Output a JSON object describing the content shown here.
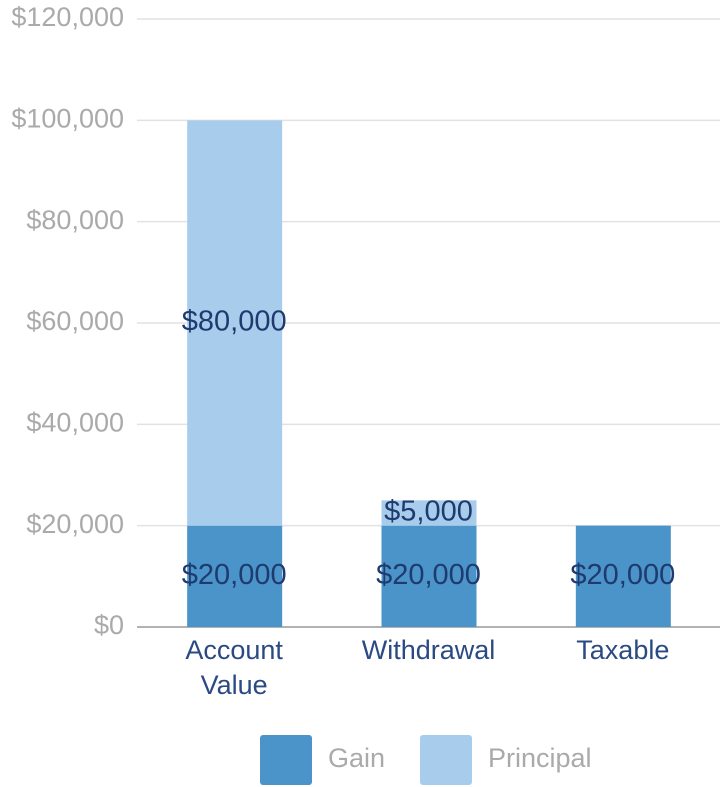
{
  "chart_data": {
    "type": "stacked_bar",
    "categories": [
      "Account Value",
      "Withdrawal",
      "Taxable"
    ],
    "series": [
      {
        "name": "Gain",
        "color": "#4a94c9",
        "values": [
          20000,
          20000,
          20000
        ],
        "value_labels": [
          "$20,000",
          "$20,000",
          "$20,000"
        ]
      },
      {
        "name": "Principal",
        "color": "#a8cdec",
        "values": [
          80000,
          5000,
          null
        ],
        "value_labels": [
          "$80,000",
          "$5,000",
          null
        ]
      }
    ],
    "ylim": [
      0,
      120000
    ],
    "yticks": [
      {
        "value": 0,
        "label": "$0"
      },
      {
        "value": 20000,
        "label": "$20,000"
      },
      {
        "value": 40000,
        "label": "$40,000"
      },
      {
        "value": 60000,
        "label": "$60,000"
      },
      {
        "value": 80000,
        "label": "$80,000"
      },
      {
        "value": 100000,
        "label": "$100,000"
      },
      {
        "value": 120000,
        "label": "$120,000"
      }
    ],
    "grid": true
  }
}
